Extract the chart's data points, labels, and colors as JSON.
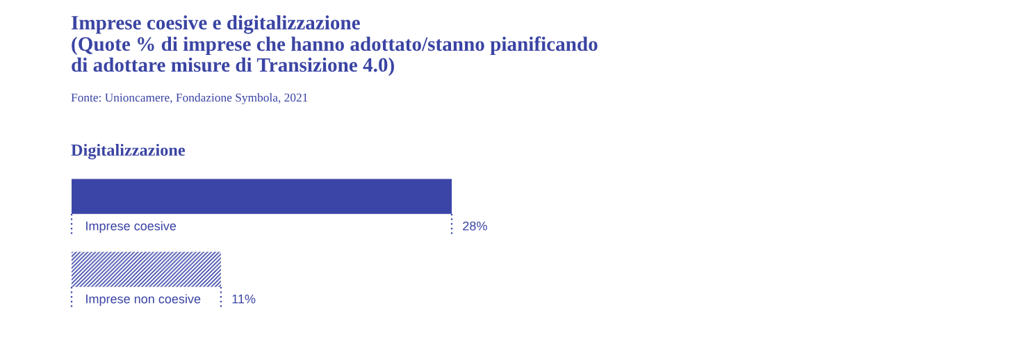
{
  "chart_data": {
    "type": "bar",
    "orientation": "horizontal",
    "title": "Imprese coesive e digitalizzazione\n(Quote % di imprese che hanno adottato/stanno pianificando\ndi adottare misure di Transizione 4.0)",
    "subtitle": "Digitalizzazione",
    "annotations": [
      "Fonte: Unioncamere, Fondazione Symbola, 2021"
    ],
    "categories": [
      "Imprese coesive",
      "Imprese non coesive"
    ],
    "values": [
      28,
      11
    ],
    "value_labels": [
      "28%",
      "11%"
    ],
    "colors": [
      "#3b45a8",
      "#3b45a8"
    ]
  }
}
